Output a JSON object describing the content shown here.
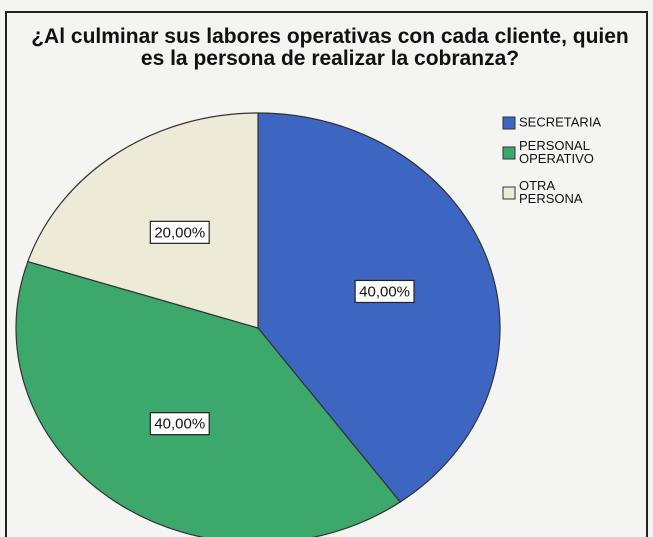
{
  "chart_data": {
    "type": "pie",
    "title": "¿Al culminar sus labores operativas con cada cliente, quien es la persona de realizar la cobranza?",
    "categories": [
      "SECRETARIA",
      "PERSONAL OPERATIVO",
      "OTRA PERSONA"
    ],
    "values": [
      40,
      40,
      20
    ],
    "value_labels": [
      "40,00%",
      "40,00%",
      "20,00%"
    ],
    "colors": [
      "#3d66c2",
      "#3da86c",
      "#eeead8"
    ],
    "legend": "right"
  }
}
